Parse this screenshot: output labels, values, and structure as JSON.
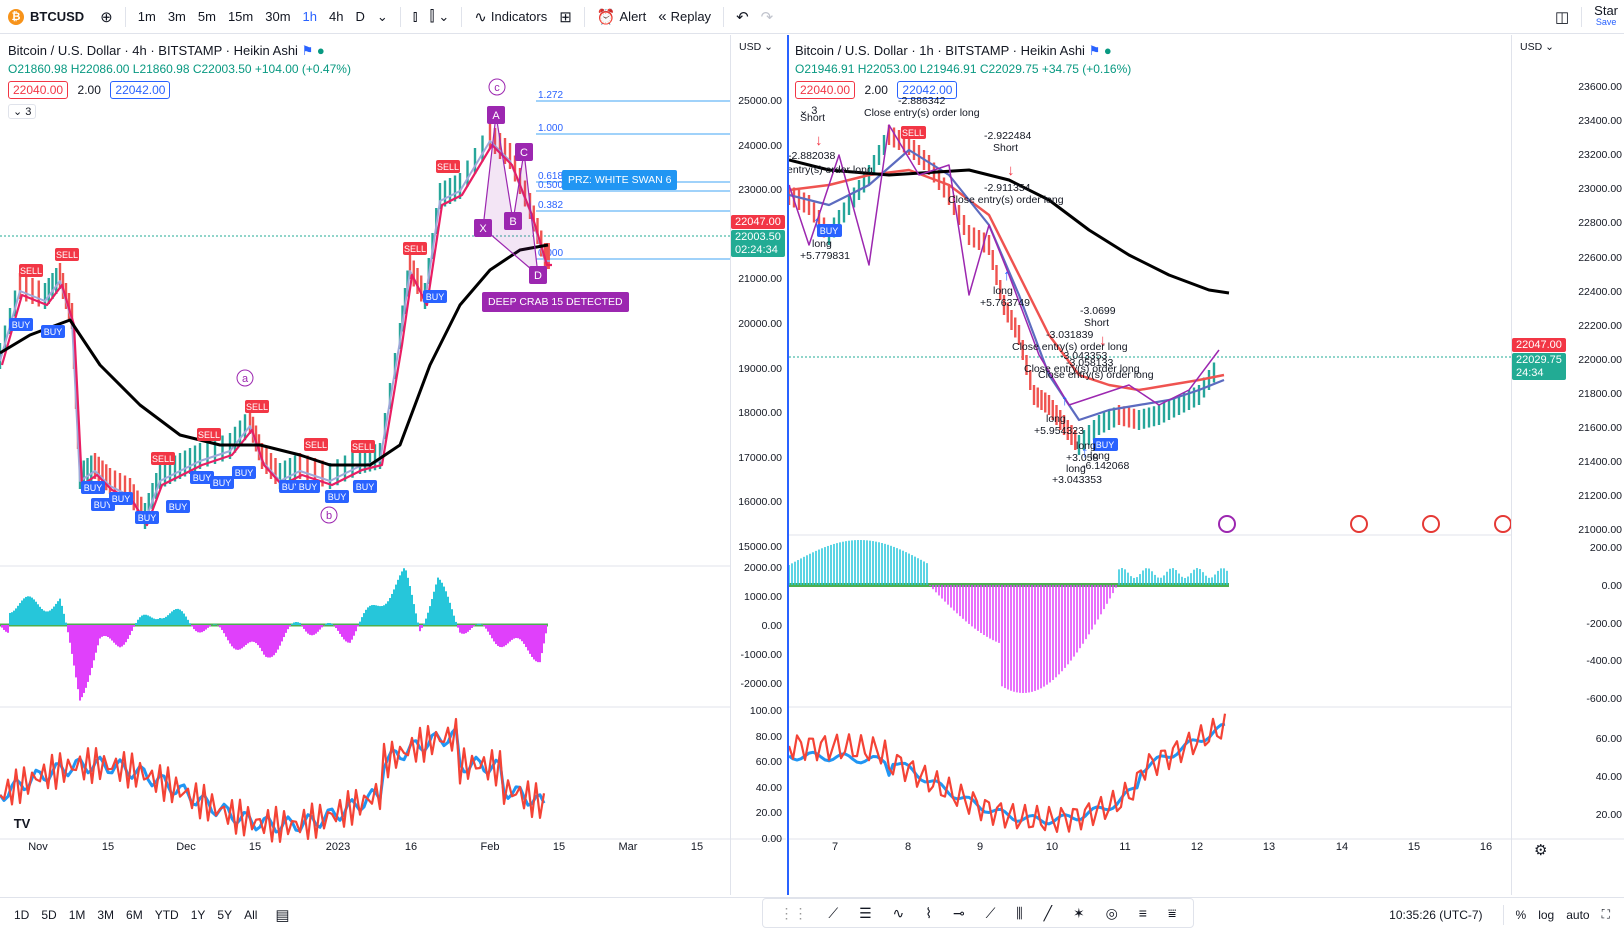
{
  "toolbar": {
    "symbol": "BTCUSD",
    "intervals": [
      "1m",
      "3m",
      "5m",
      "15m",
      "30m",
      "1h",
      "4h",
      "D"
    ],
    "active_interval": "1h",
    "indicators_label": "Indicators",
    "alert_label": "Alert",
    "replay_label": "Replay",
    "star_label": "Star",
    "save_label": "Save"
  },
  "left_chart": {
    "title": "Bitcoin / U.S. Dollar · 4h · BITSTAMP · Heikin Ashi",
    "ohlc": "O21860.98 H22086.00 L21860.98 C22003.50 +104.00 (+0.47%)",
    "bid": "22040.00",
    "spread": "2.00",
    "ask": "22042.00",
    "indicator_count": "3",
    "currency": "USD",
    "price_ticks": [
      "25000.00",
      "24000.00",
      "23000.00",
      "22000.00",
      "21000.00",
      "20000.00",
      "19000.00",
      "18000.00",
      "17000.00",
      "16000.00",
      "15000.00"
    ],
    "price_tag": "22047.00",
    "last_tag": "22003.50",
    "countdown": "02:24:34",
    "osc_ticks": [
      "2000.00",
      "1000.00",
      "0.00",
      "-1000.00",
      "-2000.00"
    ],
    "rsi_ticks": [
      "100.00",
      "80.00",
      "60.00",
      "40.00",
      "20.00",
      "0.00"
    ],
    "time_ticks": [
      "Nov",
      "15",
      "Dec",
      "15",
      "2023",
      "16",
      "Feb",
      "15",
      "Mar",
      "15"
    ],
    "fib_levels": [
      "1.272",
      "1.000",
      "0.618",
      "0.500",
      "0.382",
      "0.000"
    ],
    "prz_label": "PRZ: WHITE SWAN 6",
    "crab_label": "DEEP CRAB 15 DETECTED",
    "wave_labels": [
      "a",
      "b",
      "c"
    ],
    "pattern_points": [
      "X",
      "A",
      "B",
      "C",
      "D"
    ],
    "signal_labels": [
      "BUY",
      "SELL"
    ]
  },
  "right_chart": {
    "title": "Bitcoin / U.S. Dollar · 1h · BITSTAMP · Heikin Ashi",
    "ohlc": "O21946.91 H22053.00 L21946.91 C22029.75 +34.75 (+0.16%)",
    "bid": "22040.00",
    "spread": "2.00",
    "ask": "22042.00",
    "indicator_count": "3",
    "currency": "USD",
    "price_ticks": [
      "23600.00",
      "23400.00",
      "23200.00",
      "23000.00",
      "22800.00",
      "22600.00",
      "22400.00",
      "22200.00",
      "22000.00",
      "21800.00",
      "21600.00",
      "21400.00",
      "21200.00",
      "21000.00"
    ],
    "price_tag": "22047.00",
    "last_tag": "22029.75",
    "countdown": "24:34",
    "osc_ticks": [
      "200.00",
      "0.00",
      "-200.00",
      "-400.00",
      "-600.00"
    ],
    "rsi_ticks": [
      "60.00",
      "40.00",
      "20.00"
    ],
    "time_ticks": [
      "7",
      "8",
      "9",
      "10",
      "11",
      "12",
      "13",
      "14",
      "15",
      "16"
    ],
    "annotations": [
      {
        "t": "Short",
        "x": 800,
        "y": 120
      },
      {
        "t": "-2.882038",
        "x": 788,
        "y": 158
      },
      {
        "t": "entry(s) order long",
        "x": 787,
        "y": 172
      },
      {
        "t": "long",
        "x": 812,
        "y": 246
      },
      {
        "t": "+5.779831",
        "x": 800,
        "y": 258
      },
      {
        "t": "-2.886342",
        "x": 898,
        "y": 103
      },
      {
        "t": "Close entry(s) order long",
        "x": 864,
        "y": 115
      },
      {
        "t": "-2.922484",
        "x": 984,
        "y": 138
      },
      {
        "t": "Short",
        "x": 993,
        "y": 150
      },
      {
        "t": "-2.911354",
        "x": 984,
        "y": 190
      },
      {
        "t": "Close entry(s) order long",
        "x": 948,
        "y": 202
      },
      {
        "t": "long",
        "x": 993,
        "y": 293
      },
      {
        "t": "+5.763749",
        "x": 980,
        "y": 305
      },
      {
        "t": "-3.0699",
        "x": 1080,
        "y": 313
      },
      {
        "t": "Short",
        "x": 1084,
        "y": 325
      },
      {
        "t": "-3.031839",
        "x": 1046,
        "y": 337
      },
      {
        "t": "Close entry(s) order long",
        "x": 1012,
        "y": 349
      },
      {
        "t": "-3.043353",
        "x": 1060,
        "y": 358
      },
      {
        "t": "-3.058133",
        "x": 1066,
        "y": 365
      },
      {
        "t": "Close entry(s) order long",
        "x": 1024,
        "y": 371
      },
      {
        "t": "Close entry(s) order long",
        "x": 1038,
        "y": 377
      },
      {
        "t": "long",
        "x": 1046,
        "y": 421
      },
      {
        "t": "+5.954323",
        "x": 1034,
        "y": 433
      },
      {
        "t": "long",
        "x": 1076,
        "y": 448
      },
      {
        "t": "+3.058",
        "x": 1066,
        "y": 460
      },
      {
        "t": "long",
        "x": 1090,
        "y": 458
      },
      {
        "t": "-6.142068",
        "x": 1082,
        "y": 468
      },
      {
        "t": "long",
        "x": 1066,
        "y": 471
      },
      {
        "t": "+3.043353",
        "x": 1052,
        "y": 482
      }
    ]
  },
  "bottom": {
    "ranges": [
      "1D",
      "5D",
      "1M",
      "3M",
      "6M",
      "YTD",
      "1Y",
      "5Y",
      "All"
    ],
    "time": "10:35:26 (UTC-7)",
    "percent": "%",
    "log": "log",
    "auto": "auto"
  },
  "colors": {
    "accent": "#2962ff",
    "up": "#089981",
    "down": "#f23645",
    "pattern": "#9c27b0",
    "price_tag": "#f23645",
    "last_tag": "#22ab94"
  }
}
